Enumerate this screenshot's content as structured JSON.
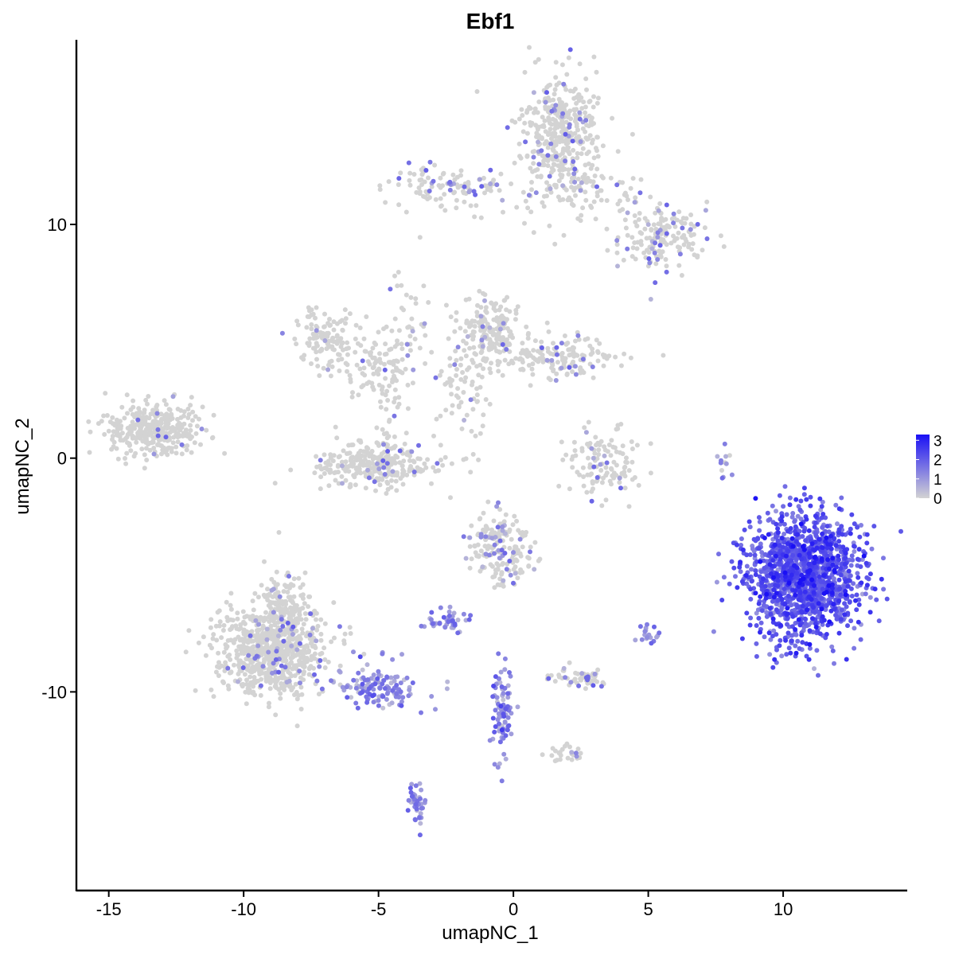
{
  "chart_data": {
    "type": "scatter",
    "title": "Ebf1",
    "xlabel": "umapNC_1",
    "ylabel": "umapNC_2",
    "xlim": [
      -16.2,
      14.6
    ],
    "ylim": [
      -18.5,
      17.9
    ],
    "x_ticks": [
      -15,
      -10,
      -5,
      0,
      5,
      10
    ],
    "x_tick_labels": [
      "-15",
      "-10",
      "-5",
      "0",
      "5",
      "10"
    ],
    "y_ticks": [
      -10,
      0,
      10
    ],
    "y_tick_labels": [
      "-10",
      "0",
      "10"
    ],
    "grid": false,
    "legend": {
      "position": "right",
      "scale": "expression",
      "ticks": [
        0,
        1,
        2,
        3
      ],
      "tick_labels": [
        "0",
        "1",
        "2",
        "3"
      ],
      "range": [
        0,
        3.3
      ]
    },
    "colors": {
      "low": "#d3d3d3",
      "high": "#1a10f5"
    },
    "clusters": [
      {
        "name": "top-head",
        "cx": 1.8,
        "cy": 14.0,
        "sx": 0.75,
        "sy": 1.2,
        "n": 380,
        "expr": 0.03
      },
      {
        "name": "top-right-arm",
        "cx": 5.5,
        "cy": 9.5,
        "sx": 0.8,
        "sy": 0.7,
        "n": 170,
        "expr": 0.05
      },
      {
        "name": "top-left-arm",
        "cx": -2.3,
        "cy": 11.6,
        "sx": 1.2,
        "sy": 0.5,
        "n": 110,
        "expr": 0.05
      },
      {
        "name": "top-bridge",
        "cx": 2.8,
        "cy": 11.3,
        "sx": 1.3,
        "sy": 0.8,
        "n": 90,
        "expr": 0.04
      },
      {
        "name": "mid-left-blob",
        "cx": -7.0,
        "cy": 5.2,
        "sx": 0.5,
        "sy": 0.6,
        "n": 110,
        "expr": 0.02
      },
      {
        "name": "mid-upper-arm",
        "cx": -5.2,
        "cy": 4.2,
        "sx": 0.9,
        "sy": 0.7,
        "n": 90,
        "expr": 0.02
      },
      {
        "name": "mid-center-tail",
        "cx": -3.8,
        "cy": 5.6,
        "sx": 0.4,
        "sy": 1.2,
        "n": 40,
        "expr": 0.05
      },
      {
        "name": "mid-right-blob",
        "cx": -0.9,
        "cy": 5.4,
        "sx": 0.55,
        "sy": 0.8,
        "n": 180,
        "expr": 0.02
      },
      {
        "name": "mid-right-arm",
        "cx": 1.8,
        "cy": 4.3,
        "sx": 1.0,
        "sy": 0.45,
        "n": 150,
        "expr": 0.04
      },
      {
        "name": "mid-right-stem",
        "cx": -1.9,
        "cy": 3.0,
        "sx": 0.6,
        "sy": 1.2,
        "n": 70,
        "expr": 0.02
      },
      {
        "name": "left-isolated",
        "cx": -13.3,
        "cy": 1.2,
        "sx": 0.9,
        "sy": 0.55,
        "n": 370,
        "expr": 0.01
      },
      {
        "name": "cup-cluster",
        "cx": -5.2,
        "cy": -0.3,
        "sx": 1.2,
        "sy": 0.45,
        "n": 280,
        "expr": 0.02
      },
      {
        "name": "cup-stem",
        "cx": -4.6,
        "cy": 2.0,
        "sx": 0.35,
        "sy": 1.4,
        "n": 50,
        "expr": 0.02
      },
      {
        "name": "right-mid-arc",
        "cx": 3.3,
        "cy": -0.3,
        "sx": 0.7,
        "sy": 0.75,
        "n": 120,
        "expr": 0.04
      },
      {
        "name": "b-cell-cluster",
        "cx": 10.8,
        "cy": -5.0,
        "sx": 1.05,
        "sy": 1.3,
        "n": 1500,
        "expr": 2.0
      },
      {
        "name": "lower-left-blob",
        "cx": -9.0,
        "cy": -8.2,
        "sx": 1.0,
        "sy": 0.95,
        "n": 750,
        "expr": 0.02
      },
      {
        "name": "lower-left-column",
        "cx": -8.5,
        "cy": -6.2,
        "sx": 0.45,
        "sy": 0.8,
        "n": 130,
        "expr": 0.02
      },
      {
        "name": "lower-left-tail",
        "cx": -5.0,
        "cy": -9.8,
        "sx": 0.8,
        "sy": 0.45,
        "n": 130,
        "expr": 1.1
      },
      {
        "name": "center-lower-top",
        "cx": -0.5,
        "cy": -3.8,
        "sx": 0.55,
        "sy": 0.7,
        "n": 190,
        "expr": 0.06
      },
      {
        "name": "small-left-center",
        "cx": -2.5,
        "cy": -7.0,
        "sx": 0.35,
        "sy": 0.25,
        "n": 45,
        "expr": 0.9
      },
      {
        "name": "center-streak",
        "cx": -0.4,
        "cy": -10.8,
        "sx": 0.2,
        "sy": 1.0,
        "n": 90,
        "expr": 1.2
      },
      {
        "name": "center-right-small",
        "cx": 2.4,
        "cy": -9.4,
        "sx": 0.5,
        "sy": 0.2,
        "n": 60,
        "expr": 0.05
      },
      {
        "name": "lower-center-right",
        "cx": 2.0,
        "cy": -12.6,
        "sx": 0.35,
        "sy": 0.2,
        "n": 25,
        "expr": 0.02
      },
      {
        "name": "bottom-streak",
        "cx": -3.6,
        "cy": -14.8,
        "sx": 0.15,
        "sy": 0.5,
        "n": 40,
        "expr": 0.4
      },
      {
        "name": "right-edge-small",
        "cx": 5.1,
        "cy": -7.5,
        "sx": 0.2,
        "sy": 0.2,
        "n": 18,
        "expr": 0.3
      },
      {
        "name": "streak-right",
        "cx": 7.9,
        "cy": -0.3,
        "sx": 0.12,
        "sy": 0.4,
        "n": 12,
        "expr": 0.3
      }
    ]
  }
}
